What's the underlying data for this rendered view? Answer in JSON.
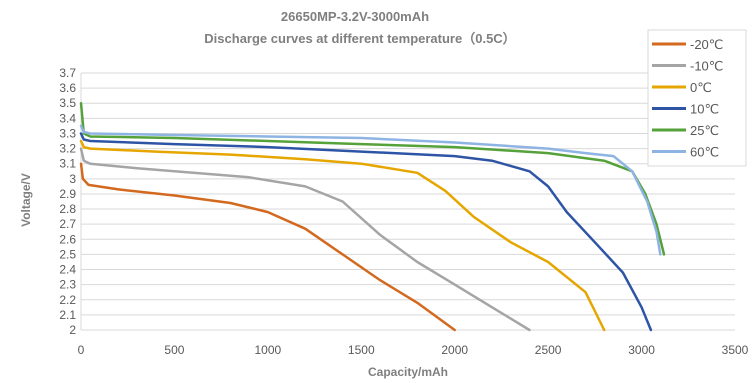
{
  "chart_data": {
    "type": "line",
    "title": "26650MP-3.2V-3000mAh",
    "subtitle": "Discharge curves at different temperature（0.5C）",
    "xlabel": "Capacity/mAh",
    "ylabel": "Voltage/V",
    "xlim": [
      0,
      3500
    ],
    "ylim": [
      2,
      3.7
    ],
    "x_ticks": [
      "0",
      "500",
      "1000",
      "1500",
      "2000",
      "2500",
      "3000",
      "3500"
    ],
    "y_ticks": [
      "2",
      "2.1",
      "2.2",
      "2.3",
      "2.4",
      "2.5",
      "2.6",
      "2.7",
      "2.8",
      "2.9",
      "3",
      "3.1",
      "3.2",
      "3.3",
      "3.4",
      "3.5",
      "3.6",
      "3.7"
    ],
    "grid": "horizontal",
    "legend_position": "right",
    "series": [
      {
        "name": "-20℃",
        "color": "#d2691e",
        "points": [
          [
            0,
            3.1
          ],
          [
            10,
            3.0
          ],
          [
            40,
            2.96
          ],
          [
            200,
            2.93
          ],
          [
            500,
            2.89
          ],
          [
            800,
            2.84
          ],
          [
            1000,
            2.78
          ],
          [
            1200,
            2.67
          ],
          [
            1400,
            2.5
          ],
          [
            1600,
            2.33
          ],
          [
            1800,
            2.18
          ],
          [
            2000,
            2.0
          ]
        ]
      },
      {
        "name": "-10℃",
        "color": "#a5a5a5",
        "points": [
          [
            0,
            3.2
          ],
          [
            15,
            3.12
          ],
          [
            50,
            3.1
          ],
          [
            300,
            3.07
          ],
          [
            600,
            3.04
          ],
          [
            900,
            3.01
          ],
          [
            1200,
            2.95
          ],
          [
            1400,
            2.85
          ],
          [
            1600,
            2.63
          ],
          [
            1800,
            2.45
          ],
          [
            2000,
            2.3
          ],
          [
            2200,
            2.15
          ],
          [
            2400,
            2.0
          ]
        ]
      },
      {
        "name": "0℃",
        "color": "#e6a600",
        "points": [
          [
            0,
            3.25
          ],
          [
            15,
            3.21
          ],
          [
            50,
            3.2
          ],
          [
            400,
            3.18
          ],
          [
            800,
            3.16
          ],
          [
            1200,
            3.13
          ],
          [
            1500,
            3.1
          ],
          [
            1800,
            3.04
          ],
          [
            1950,
            2.92
          ],
          [
            2100,
            2.75
          ],
          [
            2300,
            2.58
          ],
          [
            2500,
            2.45
          ],
          [
            2700,
            2.25
          ],
          [
            2800,
            2.0
          ]
        ]
      },
      {
        "name": "10℃",
        "color": "#2e55a5",
        "points": [
          [
            0,
            3.3
          ],
          [
            15,
            3.26
          ],
          [
            50,
            3.25
          ],
          [
            500,
            3.23
          ],
          [
            1000,
            3.21
          ],
          [
            1500,
            3.18
          ],
          [
            2000,
            3.15
          ],
          [
            2200,
            3.12
          ],
          [
            2400,
            3.05
          ],
          [
            2500,
            2.95
          ],
          [
            2600,
            2.78
          ],
          [
            2750,
            2.58
          ],
          [
            2900,
            2.38
          ],
          [
            3000,
            2.15
          ],
          [
            3050,
            2.0
          ]
        ]
      },
      {
        "name": "25℃",
        "color": "#55a13a",
        "points": [
          [
            0,
            3.5
          ],
          [
            15,
            3.3
          ],
          [
            50,
            3.28
          ],
          [
            500,
            3.27
          ],
          [
            1000,
            3.25
          ],
          [
            1500,
            3.23
          ],
          [
            2000,
            3.21
          ],
          [
            2500,
            3.17
          ],
          [
            2800,
            3.12
          ],
          [
            2950,
            3.05
          ],
          [
            3020,
            2.9
          ],
          [
            3080,
            2.7
          ],
          [
            3120,
            2.5
          ]
        ]
      },
      {
        "name": "60℃",
        "color": "#8eb4e3",
        "points": [
          [
            0,
            3.35
          ],
          [
            15,
            3.31
          ],
          [
            50,
            3.3
          ],
          [
            500,
            3.29
          ],
          [
            1000,
            3.28
          ],
          [
            1500,
            3.27
          ],
          [
            2000,
            3.24
          ],
          [
            2500,
            3.2
          ],
          [
            2700,
            3.17
          ],
          [
            2850,
            3.15
          ],
          [
            2950,
            3.05
          ],
          [
            3030,
            2.85
          ],
          [
            3080,
            2.65
          ],
          [
            3100,
            2.5
          ]
        ]
      }
    ]
  }
}
